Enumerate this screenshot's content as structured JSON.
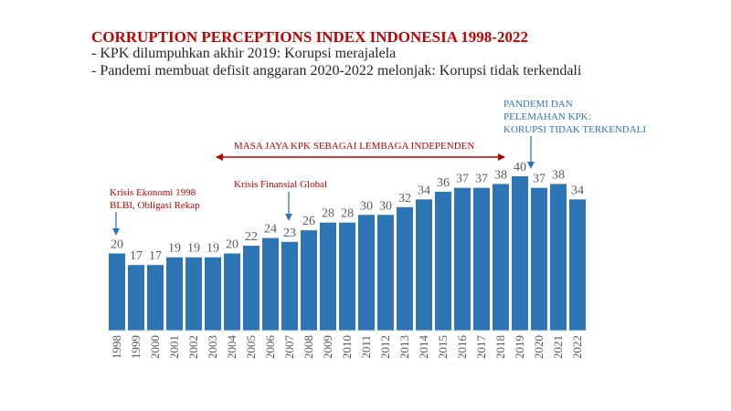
{
  "header": {
    "title": "CORRUPTION PERCEPTIONS INDEX INDONESIA 1998-2022",
    "line1": "- KPK dilumpuhkan akhir 2019: Korupsi merajalela",
    "line2": "- Pandemi membuat defisit anggaran 2020-2022 melonjak: Korupsi tidak terkendali"
  },
  "annotations": {
    "krisis_1998_line1": "Krisis Ekonomi 1998",
    "krisis_1998_line2": "BLBI, Obligasi Rekap",
    "krisis_global": "Krisis Finansial Global",
    "masa_jaya": "MASA JAYA KPK SEBAGAI LEMBAGA INDEPENDEN",
    "pandemi_line1": "PANDEMI DAN",
    "pandemi_line2": "PELEMAHAN KPK:",
    "pandemi_line3": "KORUPSI TIDAK TERKENDALI"
  },
  "colors": {
    "bar": "#2e75b6",
    "title": "#c00000",
    "annotation_red": "#c00000",
    "annotation_blue": "#2e75b6",
    "label": "#595959"
  },
  "chart_data": {
    "type": "bar",
    "title": "CORRUPTION PERCEPTIONS INDEX INDONESIA 1998-2022",
    "xlabel": "",
    "ylabel": "",
    "ylim": [
      0,
      40
    ],
    "categories": [
      "1998",
      "1999",
      "2000",
      "2001",
      "2002",
      "2003",
      "2004",
      "2005",
      "2006",
      "2007",
      "2008",
      "2009",
      "2010",
      "2011",
      "2012",
      "2013",
      "2014",
      "2015",
      "2016",
      "2017",
      "2018",
      "2019",
      "2020",
      "2021",
      "2022"
    ],
    "values": [
      20,
      17,
      17,
      19,
      19,
      19,
      20,
      22,
      24,
      23,
      26,
      28,
      28,
      30,
      30,
      32,
      34,
      36,
      37,
      37,
      38,
      40,
      37,
      38,
      34
    ]
  }
}
